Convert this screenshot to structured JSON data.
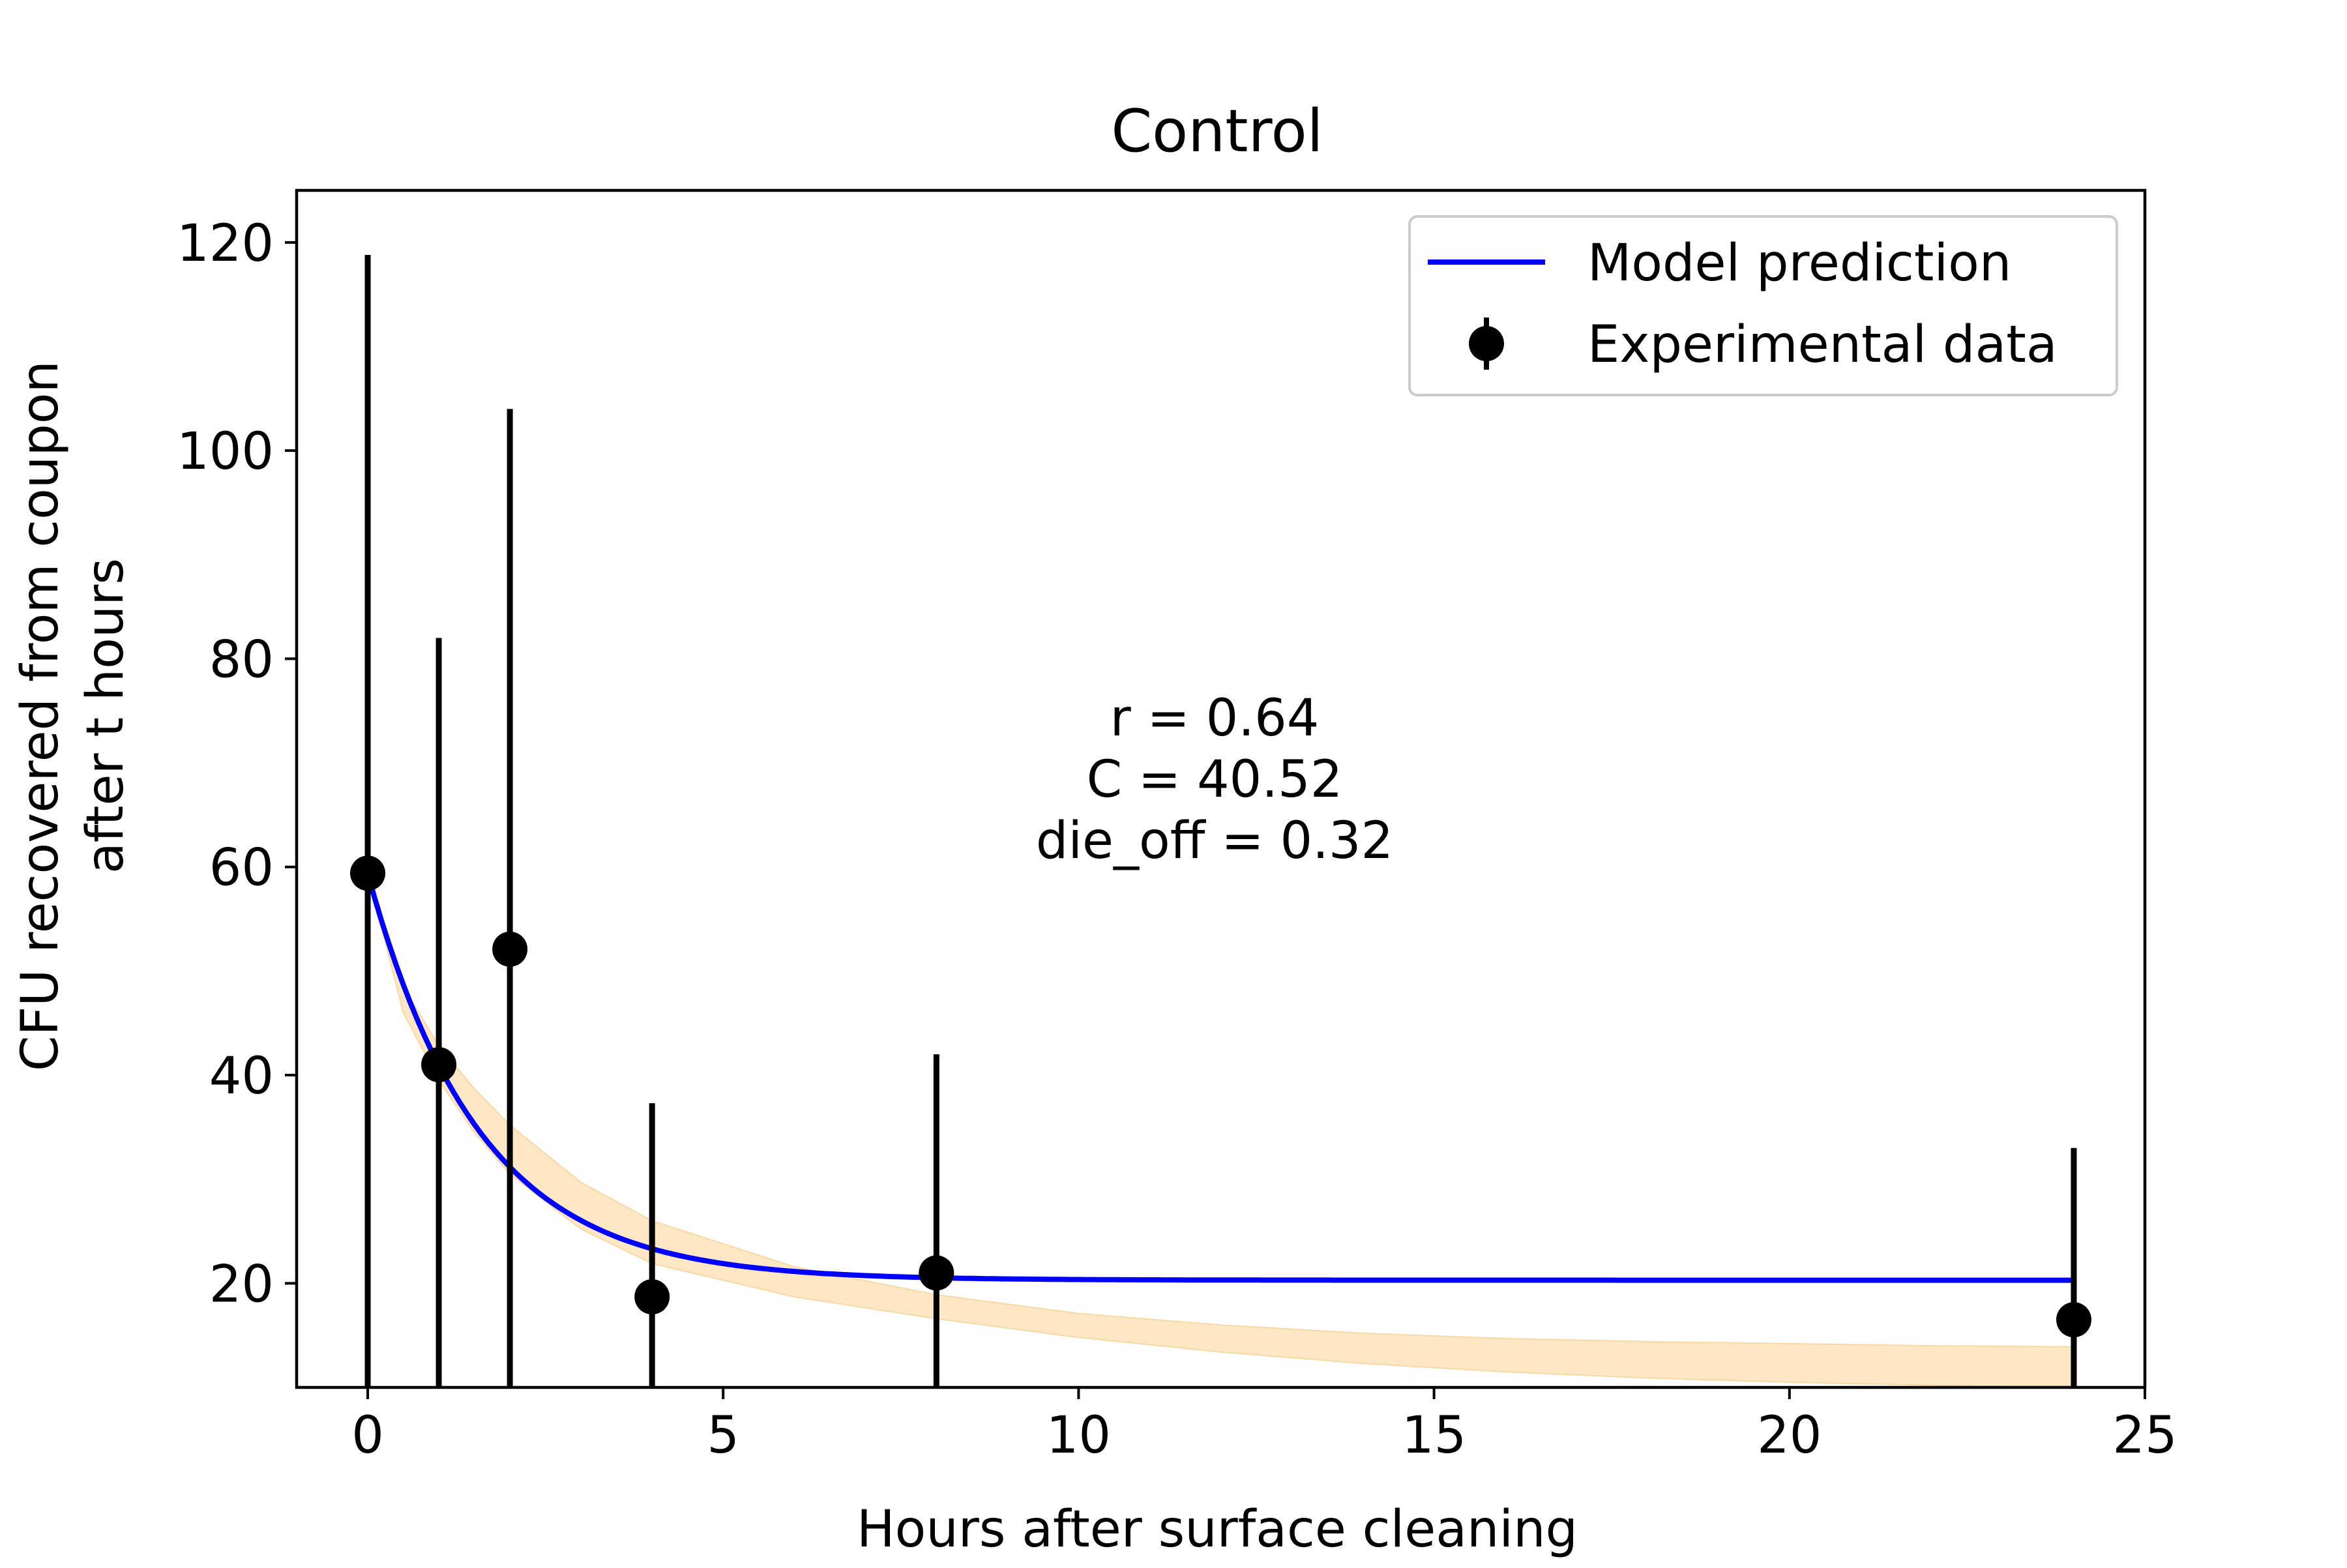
{
  "chart_data": {
    "type": "scatter",
    "title": "Control",
    "xlabel": "Hours after surface cleaning",
    "ylabel_lines": [
      "CFU recovered from coupon",
      "after t hours"
    ],
    "xlim": [
      -1,
      25
    ],
    "ylim": [
      10,
      125
    ],
    "xticks": [
      0,
      5,
      10,
      15,
      20,
      25
    ],
    "yticks": [
      20,
      40,
      60,
      80,
      100,
      120
    ],
    "grid": false,
    "legend_position": "top-right",
    "annotation_lines": [
      "r = 0.64",
      "C = 40.52",
      "die_off = 0.32"
    ],
    "series": [
      {
        "name": "Model prediction",
        "kind": "line",
        "color": "#0000ff",
        "model": {
          "C": 40.52,
          "r": 0.64,
          "die_off": 0.32,
          "baseline": 20.3
        },
        "x_range": [
          0,
          24
        ]
      },
      {
        "name": "Experimental data",
        "kind": "errorbar",
        "color": "#000000",
        "x": [
          0,
          1,
          2,
          4,
          8,
          24
        ],
        "y": [
          59.4,
          41.0,
          52.1,
          18.7,
          21.0,
          16.5
        ],
        "err_upper": [
          118.8,
          82.0,
          104.0,
          37.3,
          42.0,
          33.0
        ],
        "err_lower": [
          10,
          10,
          10,
          10,
          10,
          10
        ]
      }
    ],
    "uncertainty_band": {
      "color": "#fde7c4",
      "x": [
        0,
        0.5,
        1,
        1.5,
        2,
        3,
        4,
        6,
        8,
        10,
        12,
        14,
        16,
        18,
        20,
        22,
        24
      ],
      "upper": [
        59.4,
        48.5,
        42.8,
        38.7,
        35.2,
        29.7,
        26.0,
        21.6,
        18.9,
        17.1,
        16.0,
        15.2,
        14.7,
        14.4,
        14.2,
        14.0,
        13.9
      ],
      "lower": [
        59.4,
        46.0,
        39.5,
        34.5,
        30.5,
        25.2,
        21.9,
        18.7,
        16.6,
        14.8,
        13.4,
        12.3,
        11.5,
        10.9,
        10.5,
        10.2,
        10.0
      ]
    }
  }
}
